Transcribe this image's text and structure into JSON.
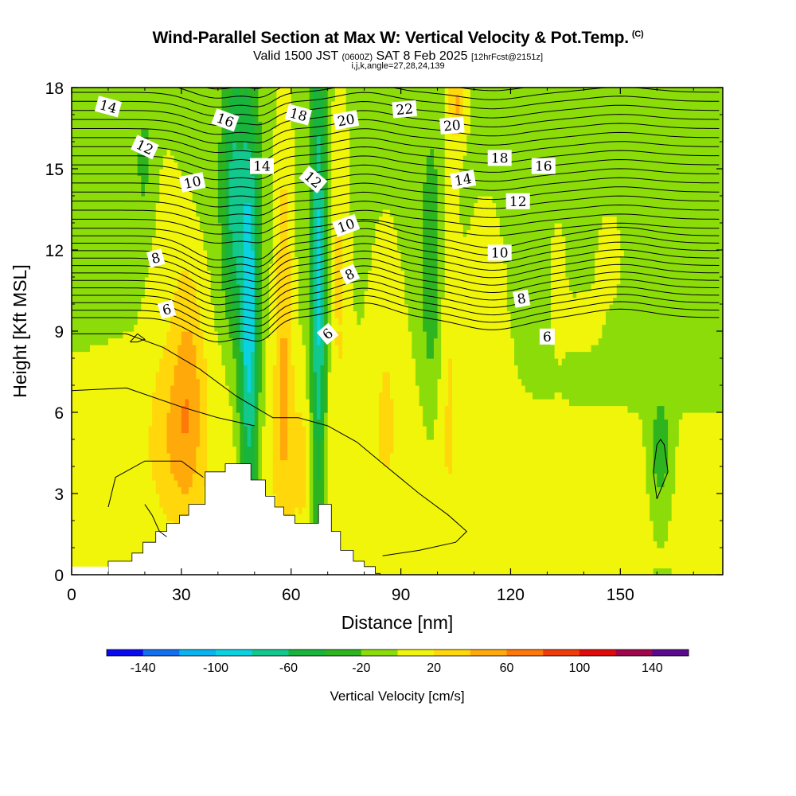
{
  "title": {
    "main": "Wind-Parallel Section at Max W: Vertical Velocity & Pot.Temp.",
    "copyright": "(C)",
    "valid_prefix": "Valid 1500 JST",
    "valid_z": "(0600Z)",
    "valid_date": "SAT 8 Feb 2025",
    "forecast": "[12hrFcst@2151z]",
    "indices": "i,j,k,angle=27,28,24,139"
  },
  "chart_data": {
    "type": "heatmap",
    "xlabel": "Distance [nm]",
    "ylabel": "Height [Kft MSL]",
    "xlim": [
      0,
      178
    ],
    "ylim": [
      0,
      18
    ],
    "x_ticks": [
      0,
      30,
      60,
      90,
      120,
      150
    ],
    "y_ticks": [
      0,
      3,
      6,
      9,
      12,
      15,
      18
    ],
    "colorbar": {
      "title": "Vertical Velocity [cm/s]",
      "tick_labels": [
        "-140",
        "-100",
        "-60",
        "-20",
        "20",
        "60",
        "100",
        "140"
      ],
      "tick_values": [
        -140,
        -100,
        -60,
        -20,
        20,
        60,
        100,
        140
      ],
      "bins": [
        {
          "range": [
            -160,
            -140
          ],
          "color": "#0a0af0"
        },
        {
          "range": [
            -140,
            -120
          ],
          "color": "#1270f0"
        },
        {
          "range": [
            -120,
            -100
          ],
          "color": "#0ab4f0"
        },
        {
          "range": [
            -100,
            -80
          ],
          "color": "#0ad2e0"
        },
        {
          "range": [
            -80,
            -60
          ],
          "color": "#12c88c"
        },
        {
          "range": [
            -60,
            -40
          ],
          "color": "#18b43c"
        },
        {
          "range": [
            -40,
            -20
          ],
          "color": "#2eb41e"
        },
        {
          "range": [
            -20,
            0
          ],
          "color": "#8cdc0a"
        },
        {
          "range": [
            0,
            20
          ],
          "color": "#f0f50a"
        },
        {
          "range": [
            20,
            40
          ],
          "color": "#ffd70a"
        },
        {
          "range": [
            40,
            60
          ],
          "color": "#ffaa0a"
        },
        {
          "range": [
            60,
            80
          ],
          "color": "#ff780a"
        },
        {
          "range": [
            80,
            100
          ],
          "color": "#f03c0a"
        },
        {
          "range": [
            100,
            120
          ],
          "color": "#e00a0a"
        },
        {
          "range": [
            120,
            140
          ],
          "color": "#a0064b"
        },
        {
          "range": [
            140,
            160
          ],
          "color": "#5a0a8c"
        }
      ]
    },
    "velocity_features": [
      {
        "kind": "updraft",
        "x": [
          26,
          36
        ],
        "y": [
          0.5,
          12
        ],
        "peak_cm_s": 50
      },
      {
        "kind": "downdraft",
        "x": [
          44,
          54
        ],
        "y": [
          2,
          18
        ],
        "peak_cm_s": -90
      },
      {
        "kind": "updraft",
        "x": [
          54,
          62
        ],
        "y": [
          3,
          18
        ],
        "peak_cm_s": 40
      },
      {
        "kind": "downdraft",
        "x": [
          64,
          70
        ],
        "y": [
          2,
          18
        ],
        "peak_cm_s": -90
      },
      {
        "kind": "downdraft",
        "x": [
          95,
          102
        ],
        "y": [
          5,
          16
        ],
        "peak_cm_s": -40
      },
      {
        "kind": "updraft",
        "x": [
          102,
          108
        ],
        "y": [
          16,
          18
        ],
        "peak_cm_s": 40
      },
      {
        "kind": "downdraft",
        "x": [
          158,
          164
        ],
        "y": [
          2.5,
          6.5
        ],
        "peak_cm_s": -40
      }
    ],
    "terrain_profile": {
      "x": [
        10,
        16.5,
        19.5,
        23,
        26,
        29.5,
        32,
        36.5,
        42,
        49,
        53,
        55.5,
        58,
        61,
        67.5,
        71,
        73.5,
        77,
        80,
        83
      ],
      "y": [
        0.5,
        0.8,
        1.2,
        1.6,
        1.9,
        2.2,
        2.6,
        3.8,
        4.1,
        3.5,
        2.9,
        2.5,
        2.2,
        1.9,
        2.6,
        1.6,
        0.9,
        0.5,
        0.3,
        0.05
      ]
    },
    "potential_temperature": {
      "units": "degC",
      "contour_interval": 1,
      "labeled_values": [
        6,
        6,
        6,
        8,
        8,
        8,
        10,
        10,
        10,
        12,
        12,
        12,
        14,
        14,
        14,
        16,
        16,
        18,
        18,
        20,
        20,
        22
      ],
      "isentrope_heights_kft_at_x0": {
        "6": 9.5,
        "8": 11.5,
        "10": 13.5,
        "12": 15.0,
        "14": 17.0
      }
    }
  }
}
